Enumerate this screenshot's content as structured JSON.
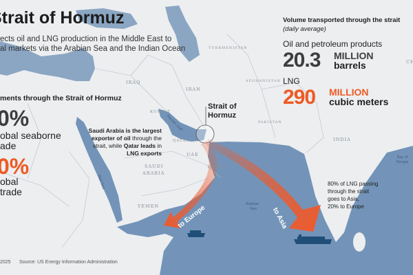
{
  "header": {
    "title": "Strait of Hormuz",
    "subtitle_line1": "ects oil and LNG production in the Middle East to",
    "subtitle_line2": "al markets via the Arabian Sea and the Indian Ocean"
  },
  "shipments": {
    "heading": "ments through the Strait of Hormuz",
    "oil_pct": "0%",
    "oil_label_1": "obal seaborne",
    "oil_label_2": "ade",
    "lng_pct": "0%",
    "lng_label_1": "obal",
    "lng_label_2": "trade"
  },
  "volume": {
    "heading": "Volume transported through the strait",
    "subheading": "(daily average)",
    "oil_label": "Oil and petroleum products",
    "oil_value": "20.3",
    "oil_unit_1": "MILLION",
    "oil_unit_2": "barrels",
    "lng_label": "LNG",
    "lng_value": "290",
    "lng_unit_1": "MILLION",
    "lng_unit_2": "cubic meters"
  },
  "map": {
    "strait_label_1": "Strait of",
    "strait_label_2": "Hormuz",
    "callout_saudi": [
      "Saudi Arabia is the largest",
      "exporter of oil",
      " through the",
      "strait, while ",
      "Qatar leads",
      " in",
      "LNG exports"
    ],
    "callout_lng": [
      "80% of LNG passing",
      "through the strait",
      "goes to Asia,",
      "20% to Europe"
    ],
    "route_europe": "to Europe",
    "route_asia": "to Asia",
    "countries": {
      "iraq": "IRAQ",
      "iran": "IRAN",
      "kuwait": "KUWAIT",
      "qatar": "QATAR",
      "uae": "UAE",
      "oman": "OMAN",
      "saudi_1": "SAUDI",
      "saudi_2": "ARABIA",
      "yemen": "YEMEN",
      "turkmenistan": "TURKMENISTAN",
      "afghanistan": "AFGHANISTAN",
      "pakistan": "PAKISTAN",
      "india": "INDIA",
      "china": "CH"
    },
    "seas": {
      "persian_gulf": "Persian Gulf",
      "red_sea": "Red Sea",
      "arabian_sea_1": "Arabian",
      "arabian_sea_2": "Sea",
      "bay_1": "Bay of",
      "bay_2": "Bengal"
    },
    "colors": {
      "land": "#eceef0",
      "sea": "#7394b8",
      "arrow": "#f0592a",
      "ship": "#1f4e79",
      "accent_orange": "#ee5a24",
      "dark_gray": "#3d3d3d"
    }
  },
  "footer": {
    "year": "2025",
    "source": "Source: US Energy Information Administration"
  }
}
